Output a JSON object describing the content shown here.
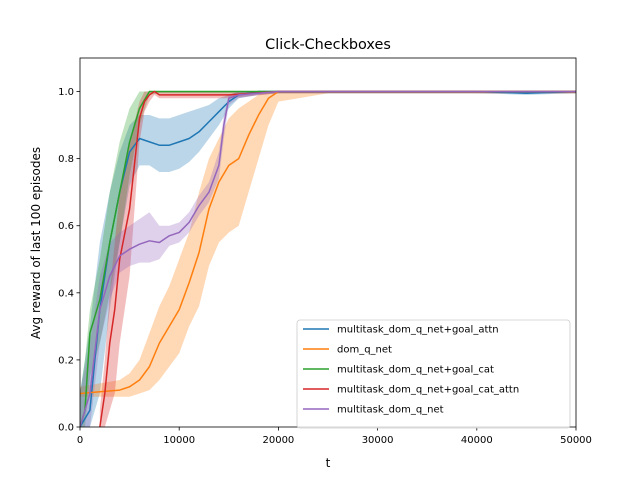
{
  "chart_data": {
    "type": "line",
    "title": "Click-Checkboxes",
    "xlabel": "t",
    "ylabel": "Avg reward of last 100 episodes",
    "xlim": [
      0,
      50000
    ],
    "ylim": [
      0,
      1.1
    ],
    "xticks": [
      0,
      10000,
      20000,
      30000,
      40000,
      50000
    ],
    "xtick_labels": [
      "0",
      "10000",
      "20000",
      "30000",
      "40000",
      "50000"
    ],
    "yticks": [
      0.0,
      0.2,
      0.4,
      0.6,
      0.8,
      1.0
    ],
    "ytick_labels": [
      "0.0",
      "0.2",
      "0.4",
      "0.6",
      "0.8",
      "1.0"
    ],
    "grid": false,
    "legend_position": "lower-right",
    "series": [
      {
        "name": "multitask_dom_q_net+goal_attn",
        "color": "#1f77b4",
        "x": [
          0,
          1000,
          2000,
          3000,
          4000,
          5000,
          6000,
          7000,
          8000,
          9000,
          10000,
          11000,
          12000,
          13000,
          14000,
          15000,
          16000,
          18000,
          20000,
          25000,
          30000,
          35000,
          40000,
          45000,
          50000
        ],
        "y": [
          0.0,
          0.05,
          0.35,
          0.55,
          0.7,
          0.82,
          0.86,
          0.85,
          0.84,
          0.84,
          0.85,
          0.86,
          0.88,
          0.91,
          0.94,
          0.97,
          0.99,
          1.0,
          1.0,
          1.0,
          1.0,
          1.0,
          1.0,
          0.995,
          1.0
        ],
        "upper": [
          0.1,
          0.3,
          0.55,
          0.7,
          0.82,
          0.9,
          0.93,
          0.93,
          0.92,
          0.92,
          0.93,
          0.94,
          0.95,
          0.96,
          0.98,
          0.99,
          1.0,
          1.0,
          1.0,
          1.0,
          1.0,
          1.0,
          1.0,
          1.0,
          1.0
        ],
        "lower": [
          0.0,
          0.0,
          0.1,
          0.35,
          0.55,
          0.72,
          0.78,
          0.78,
          0.76,
          0.76,
          0.77,
          0.79,
          0.82,
          0.86,
          0.9,
          0.95,
          0.98,
          0.99,
          0.995,
          0.995,
          0.995,
          0.995,
          0.995,
          0.99,
          0.995
        ]
      },
      {
        "name": "dom_q_net",
        "color": "#ff7f0e",
        "x": [
          0,
          2000,
          4000,
          5000,
          6000,
          7000,
          8000,
          9000,
          10000,
          11000,
          12000,
          13000,
          14000,
          15000,
          16000,
          17000,
          18000,
          19000,
          20000,
          25000,
          30000,
          35000,
          40000,
          45000,
          50000
        ],
        "y": [
          0.1,
          0.105,
          0.11,
          0.12,
          0.14,
          0.18,
          0.25,
          0.3,
          0.35,
          0.43,
          0.52,
          0.65,
          0.73,
          0.78,
          0.8,
          0.87,
          0.93,
          0.98,
          1.0,
          1.0,
          1.0,
          1.0,
          1.0,
          1.0,
          1.0
        ],
        "upper": [
          0.12,
          0.13,
          0.14,
          0.16,
          0.2,
          0.28,
          0.36,
          0.42,
          0.5,
          0.58,
          0.7,
          0.8,
          0.86,
          0.92,
          0.95,
          0.97,
          0.99,
          1.0,
          1.0,
          1.0,
          1.0,
          1.0,
          1.0,
          1.0,
          1.0
        ],
        "lower": [
          0.09,
          0.09,
          0.09,
          0.09,
          0.1,
          0.11,
          0.14,
          0.18,
          0.22,
          0.3,
          0.36,
          0.48,
          0.55,
          0.58,
          0.6,
          0.7,
          0.8,
          0.9,
          0.97,
          0.995,
          0.995,
          0.995,
          0.995,
          0.995,
          0.995
        ]
      },
      {
        "name": "multitask_dom_q_net+goal_cat",
        "color": "#2ca02c",
        "x": [
          0,
          500,
          1000,
          2000,
          3000,
          4000,
          5000,
          6000,
          7000,
          8000,
          10000,
          12000,
          15000,
          20000,
          25000,
          30000,
          35000,
          40000,
          45000,
          50000
        ],
        "y": [
          0.0,
          0.05,
          0.28,
          0.38,
          0.55,
          0.7,
          0.85,
          0.95,
          1.0,
          1.0,
          1.0,
          1.0,
          1.0,
          1.0,
          1.0,
          1.0,
          1.0,
          1.0,
          1.0,
          1.0
        ],
        "upper": [
          0.1,
          0.2,
          0.35,
          0.5,
          0.7,
          0.85,
          0.95,
          1.0,
          1.0,
          1.0,
          1.0,
          1.0,
          1.0,
          1.0,
          1.0,
          1.0,
          1.0,
          1.0,
          1.0,
          1.0
        ],
        "lower": [
          0.0,
          0.0,
          0.15,
          0.25,
          0.4,
          0.55,
          0.75,
          0.9,
          0.99,
          0.995,
          0.995,
          0.995,
          0.995,
          0.995,
          0.995,
          0.995,
          0.995,
          0.995,
          0.995,
          0.995
        ]
      },
      {
        "name": "multitask_dom_q_net+goal_cat_attn",
        "color": "#d62728",
        "x": [
          2000,
          2500,
          3000,
          3500,
          4000,
          5000,
          6000,
          6500,
          7000,
          7500,
          8000,
          10000,
          15000,
          20000,
          25000,
          30000,
          35000,
          40000,
          45000,
          50000
        ],
        "y": [
          0.0,
          0.1,
          0.25,
          0.35,
          0.5,
          0.65,
          0.92,
          0.97,
          0.99,
          1.0,
          0.99,
          0.99,
          0.99,
          1.0,
          1.0,
          1.0,
          1.0,
          1.0,
          1.0,
          1.0
        ],
        "upper": [
          0.05,
          0.2,
          0.4,
          0.55,
          0.7,
          0.85,
          0.97,
          1.0,
          1.0,
          1.0,
          1.0,
          1.0,
          1.0,
          1.0,
          1.0,
          1.0,
          1.0,
          1.0,
          1.0,
          1.0
        ],
        "lower": [
          0.0,
          0.0,
          0.05,
          0.1,
          0.25,
          0.45,
          0.85,
          0.94,
          0.97,
          0.99,
          0.98,
          0.98,
          0.98,
          0.995,
          0.995,
          0.995,
          0.995,
          0.995,
          0.995,
          0.995
        ]
      },
      {
        "name": "multitask_dom_q_net",
        "color": "#9467bd",
        "x": [
          0,
          1000,
          2000,
          3000,
          4000,
          5000,
          6000,
          7000,
          8000,
          9000,
          10000,
          11000,
          12000,
          13000,
          14000,
          14500,
          15000,
          16000,
          18000,
          20000,
          25000,
          30000,
          35000,
          40000,
          45000,
          50000
        ],
        "y": [
          0.0,
          0.1,
          0.35,
          0.45,
          0.51,
          0.53,
          0.545,
          0.555,
          0.55,
          0.57,
          0.58,
          0.61,
          0.66,
          0.7,
          0.78,
          0.9,
          0.98,
          0.99,
          0.995,
          1.0,
          1.0,
          1.0,
          1.0,
          1.0,
          1.0,
          1.0
        ],
        "upper": [
          0.1,
          0.25,
          0.45,
          0.55,
          0.58,
          0.6,
          0.62,
          0.64,
          0.6,
          0.6,
          0.61,
          0.64,
          0.69,
          0.73,
          0.82,
          0.93,
          0.99,
          1.0,
          1.0,
          1.0,
          1.0,
          1.0,
          1.0,
          1.0,
          1.0,
          1.0
        ],
        "lower": [
          0.0,
          0.0,
          0.25,
          0.38,
          0.46,
          0.48,
          0.49,
          0.49,
          0.5,
          0.54,
          0.55,
          0.58,
          0.63,
          0.67,
          0.74,
          0.86,
          0.96,
          0.98,
          0.99,
          0.995,
          0.995,
          0.995,
          0.995,
          0.995,
          0.995,
          0.995
        ]
      }
    ]
  }
}
